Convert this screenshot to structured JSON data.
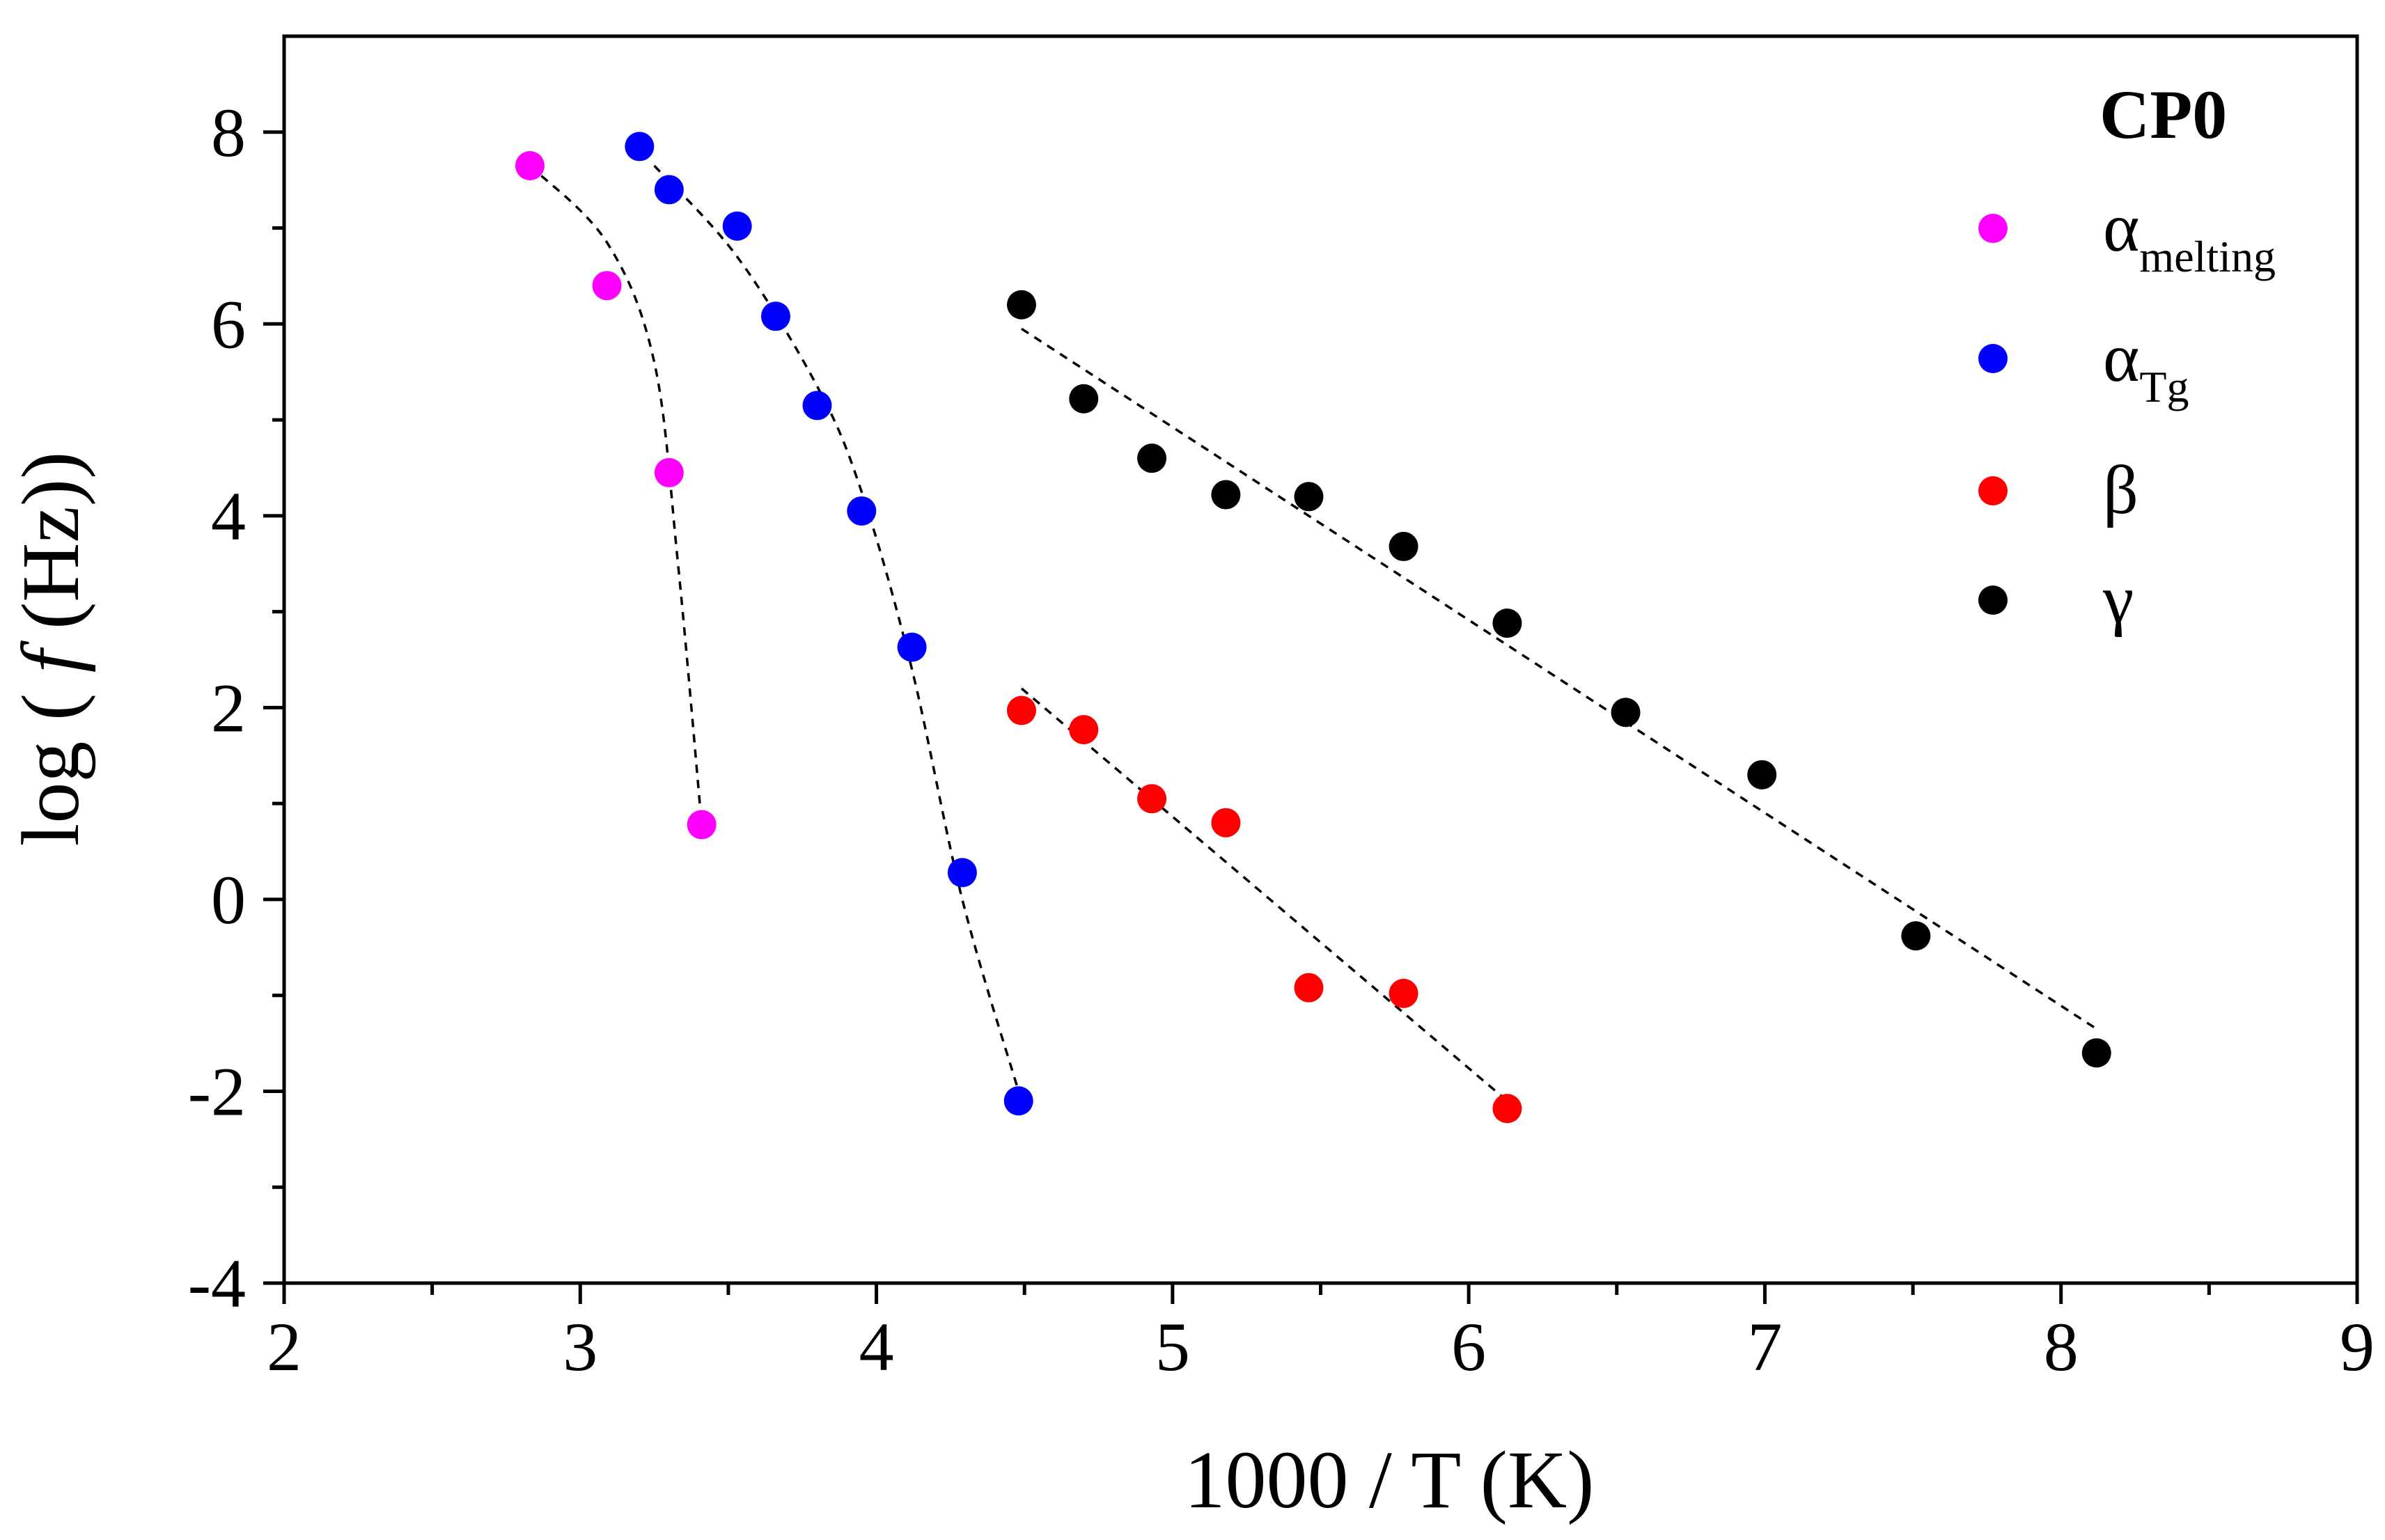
{
  "chart_data": {
    "type": "scatter",
    "title": "CP0",
    "xlabel": "1000 / T (K)",
    "ylabel_prefix": "log ( ",
    "ylabel_italic": "f",
    "ylabel_suffix": " (Hz))",
    "xlim": [
      2,
      9
    ],
    "ylim": [
      -4,
      9
    ],
    "xticks": [
      2,
      3,
      4,
      5,
      6,
      7,
      8,
      9
    ],
    "yticks": [
      -4,
      -2,
      0,
      2,
      4,
      6,
      8
    ],
    "series": [
      {
        "name": "α melting",
        "symbol": "α",
        "subscript": "melting",
        "color": "#ff00ff",
        "x": [
          2.83,
          3.09,
          3.3,
          3.41
        ],
        "y": [
          7.65,
          6.4,
          4.45,
          0.78
        ],
        "fit": {
          "x": [
            2.83,
            3.09,
            3.25,
            3.33,
            3.41
          ],
          "y": [
            7.65,
            6.85,
            5.6,
            3.5,
            0.78
          ]
        }
      },
      {
        "name": "α Tg",
        "symbol": "α",
        "subscript": "Tg",
        "color": "#0000ff",
        "x": [
          3.2,
          3.3,
          3.53,
          3.66,
          3.8,
          3.95,
          4.12,
          4.29,
          4.48
        ],
        "y": [
          7.85,
          7.4,
          7.02,
          6.08,
          5.15,
          4.05,
          2.63,
          0.28,
          -2.1
        ],
        "fit": {
          "x": [
            3.25,
            3.53,
            3.8,
            3.95,
            4.12,
            4.29,
            4.48
          ],
          "y": [
            7.65,
            6.7,
            5.35,
            4.25,
            2.4,
            0.0,
            -2.0
          ]
        }
      },
      {
        "name": "β",
        "symbol": "β",
        "subscript": "",
        "color": "#ff0000",
        "x": [
          4.49,
          4.7,
          4.93,
          5.18,
          5.46,
          5.78,
          6.13
        ],
        "y": [
          1.97,
          1.77,
          1.05,
          0.8,
          -0.92,
          -0.98,
          -2.18
        ],
        "fit": {
          "x": [
            4.49,
            6.13
          ],
          "y": [
            2.2,
            -2.1
          ]
        }
      },
      {
        "name": "γ",
        "symbol": "γ",
        "subscript": "",
        "color": "#000000",
        "x": [
          4.49,
          4.7,
          4.93,
          5.18,
          5.46,
          5.78,
          6.13,
          6.53,
          6.99,
          7.51,
          8.12
        ],
        "y": [
          6.2,
          5.22,
          4.6,
          4.22,
          4.2,
          3.68,
          2.88,
          1.95,
          1.3,
          -0.38,
          -1.6
        ],
        "fit": {
          "x": [
            4.49,
            8.12
          ],
          "y": [
            5.95,
            -1.35
          ]
        }
      }
    ],
    "legend_position": "top-right"
  }
}
